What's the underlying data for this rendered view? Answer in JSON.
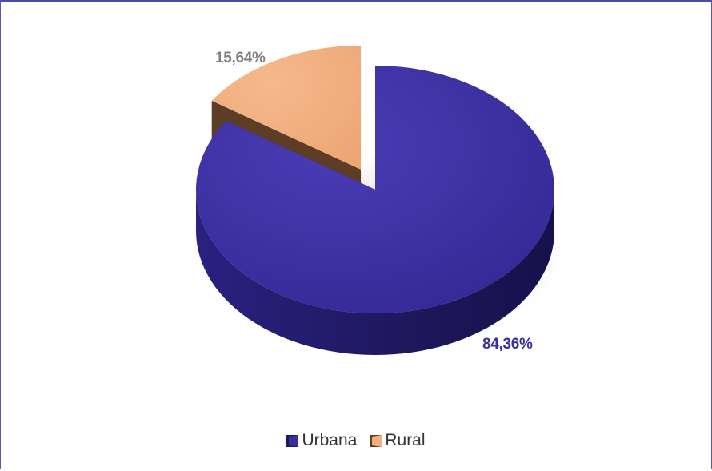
{
  "colors": {
    "frame_border": "#5a5ab0"
  },
  "chart_data": {
    "type": "pie",
    "style": "3d-exploded",
    "legend_position": "bottom",
    "slices": [
      {
        "label": "Urbana",
        "value": 84.36,
        "display": "84,36%",
        "color": "#3b2f9e",
        "side_color": "#1c1760",
        "label_color": "#3c2fa0"
      },
      {
        "label": "Rural",
        "value": 15.64,
        "display": "15,64%",
        "color": "#f2ae7e",
        "side_color": "#5e3d26",
        "label_color": "#808080"
      }
    ],
    "legend": [
      "Urbana",
      "Rural"
    ]
  }
}
